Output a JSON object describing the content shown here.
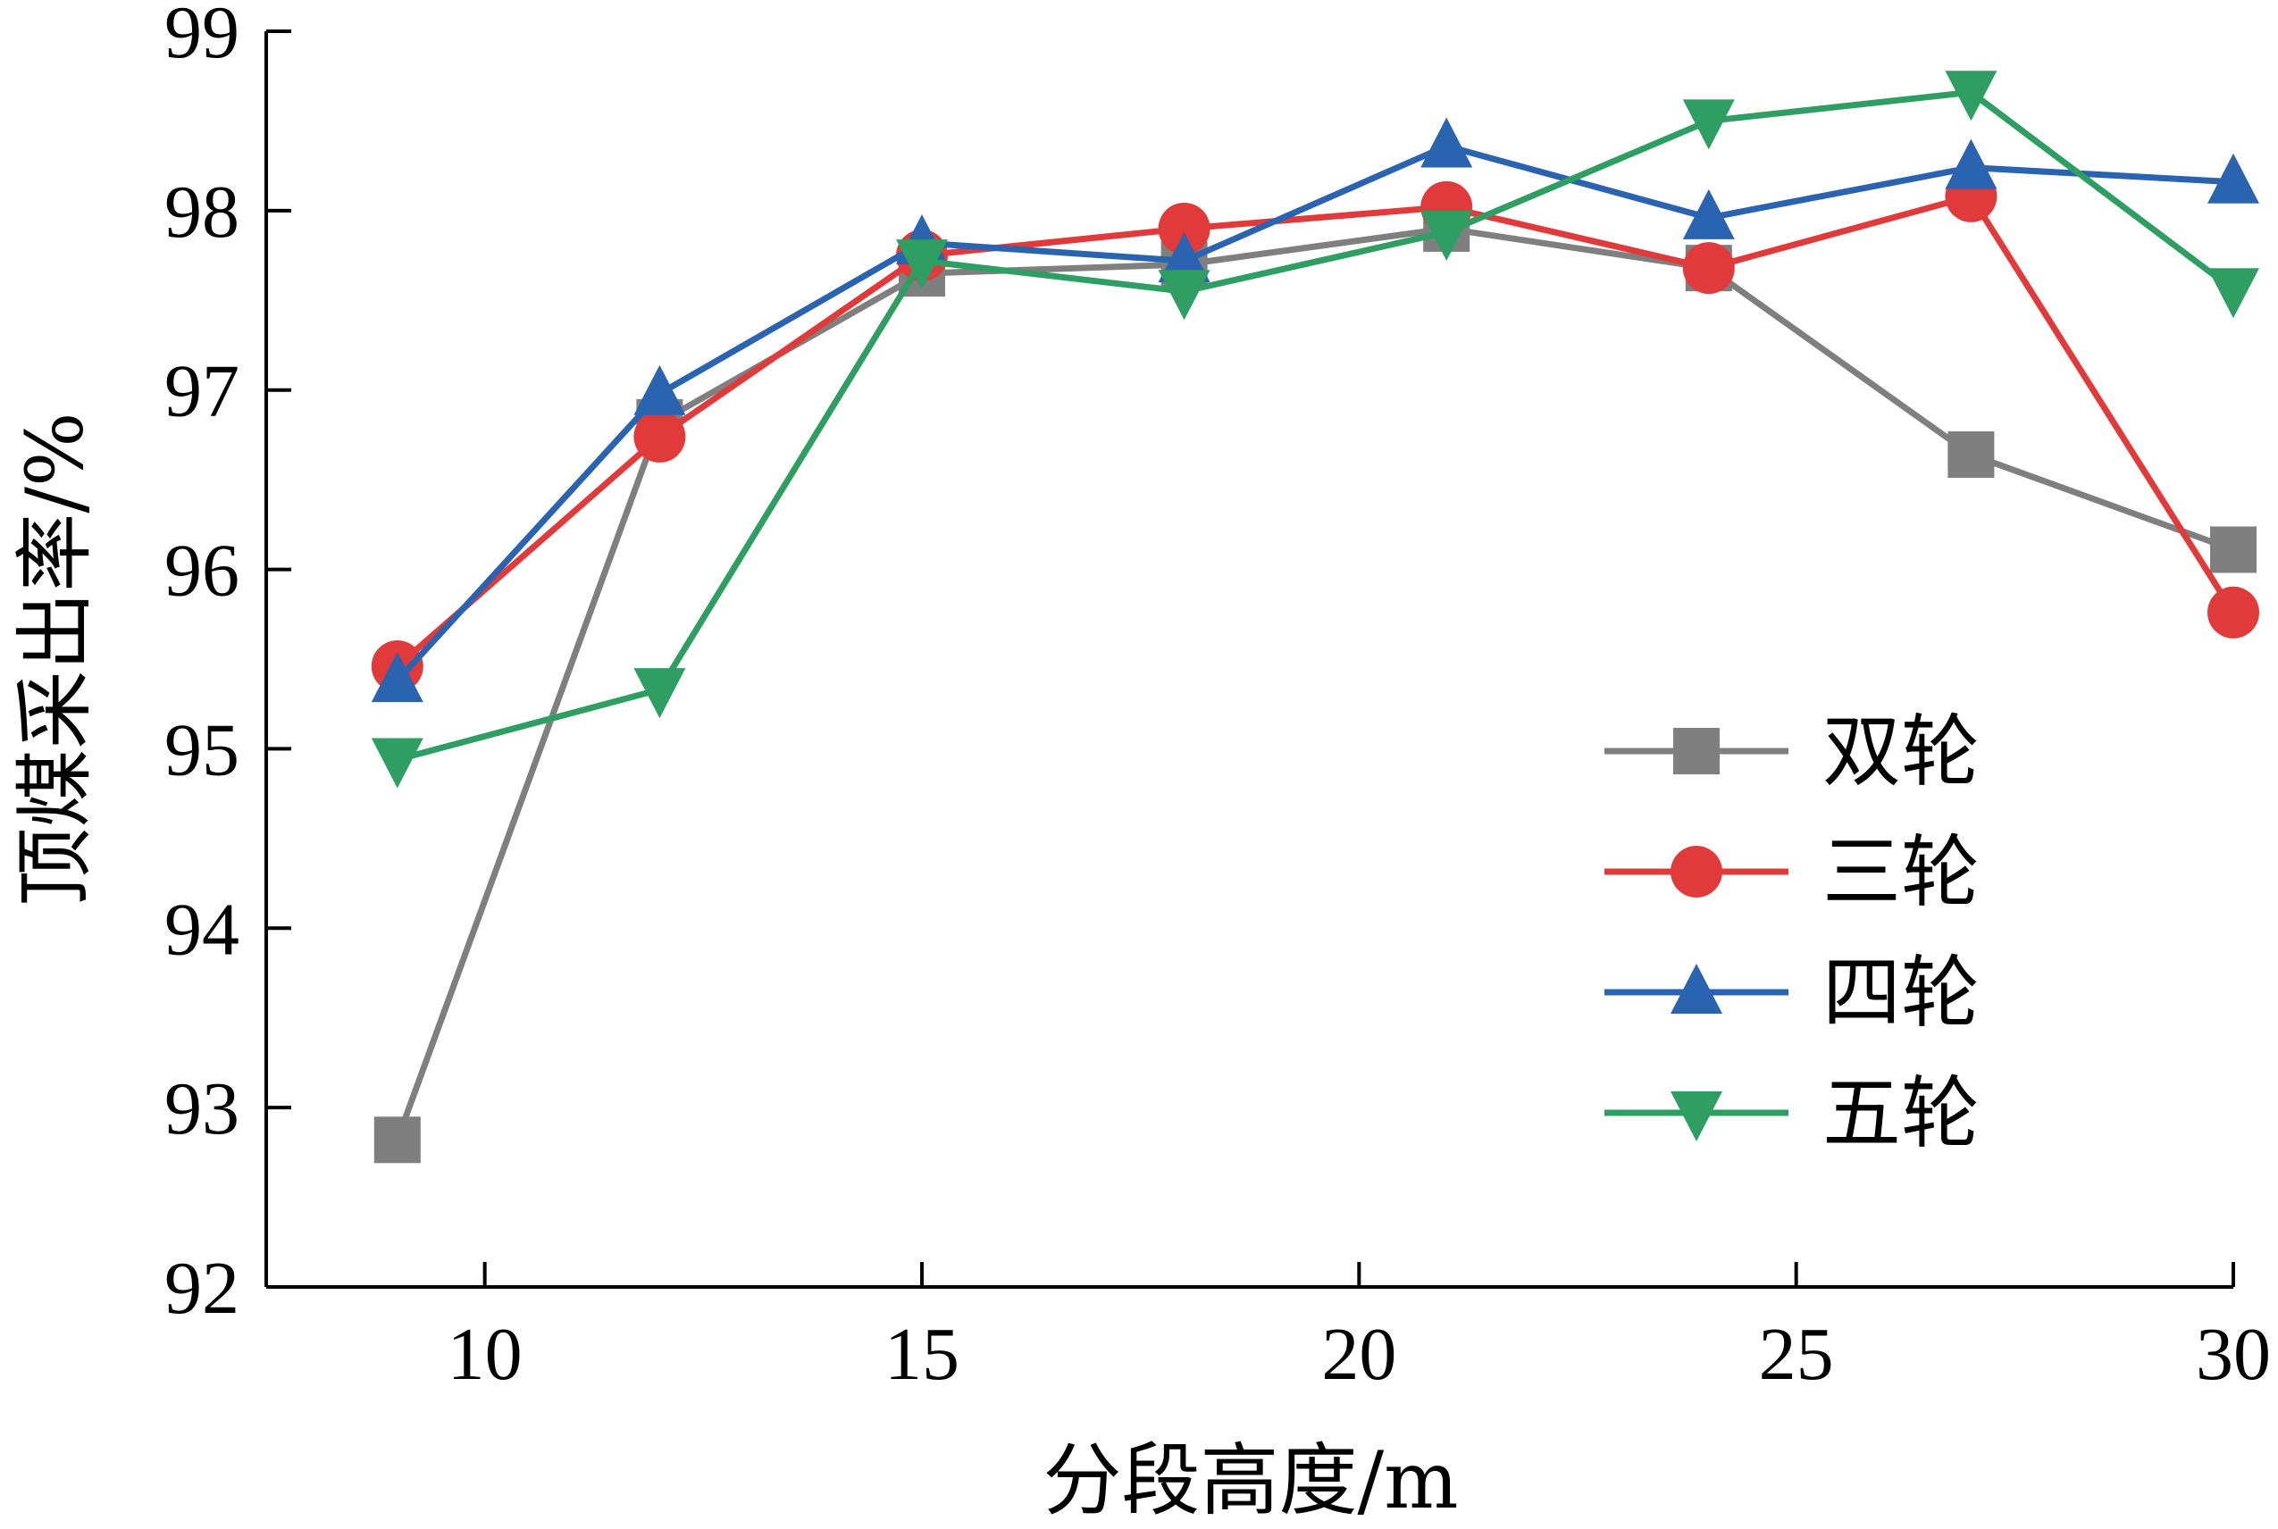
{
  "chart_data": {
    "type": "line",
    "xlabel": "分段高度/m",
    "ylabel": "顶煤采出率/%",
    "xlim": [
      7.5,
      30
    ],
    "ylim": [
      92,
      99
    ],
    "xticks": [
      10,
      15,
      20,
      25,
      30
    ],
    "yticks": [
      92,
      93,
      94,
      95,
      96,
      97,
      98,
      99
    ],
    "x": [
      9,
      12,
      15,
      18,
      21,
      24,
      27,
      30
    ],
    "legend_position": "lower-right",
    "series": [
      {
        "name": "双轮",
        "color": "#7f7f7f",
        "marker": "square",
        "values": [
          92.82,
          96.82,
          97.65,
          97.7,
          97.9,
          97.68,
          96.64,
          96.11
        ]
      },
      {
        "name": "三轮",
        "color": "#e03a3a",
        "marker": "circle",
        "values": [
          95.46,
          96.74,
          97.75,
          97.9,
          98.02,
          97.68,
          98.08,
          95.76
        ]
      },
      {
        "name": "四轮",
        "color": "#2a63b0",
        "marker": "triangle-up",
        "values": [
          95.38,
          96.98,
          97.82,
          97.72,
          98.36,
          97.96,
          98.24,
          98.16
        ]
      },
      {
        "name": "五轮",
        "color": "#2f9e63",
        "marker": "triangle-down",
        "values": [
          94.94,
          95.33,
          97.72,
          97.55,
          97.88,
          98.5,
          98.66,
          97.56
        ]
      }
    ]
  }
}
